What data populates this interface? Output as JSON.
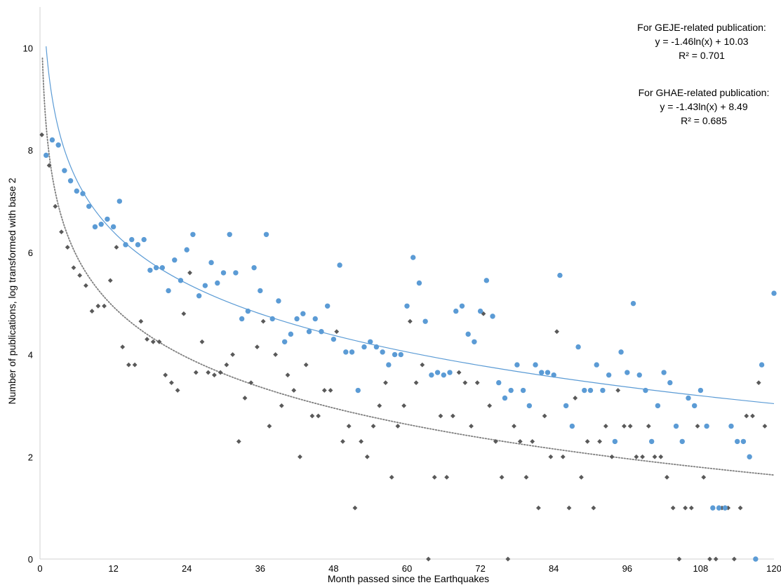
{
  "chart_data": {
    "type": "scatter",
    "xlabel": "Month passed since the Earthquakes",
    "ylabel": "Number of publications, log transformed with base 2",
    "xlim": [
      0,
      120
    ],
    "ylim": [
      0,
      10.8
    ],
    "xticks": [
      0,
      12,
      24,
      36,
      48,
      60,
      72,
      84,
      96,
      108,
      120
    ],
    "yticks": [
      0,
      2,
      4,
      6,
      8,
      10
    ],
    "grid": false,
    "legend": "none",
    "series": [
      {
        "marker": "circle",
        "color": "#5b9bd5",
        "trendline": {
          "type": "log",
          "a": -1.46,
          "b": 10.03,
          "style": "solid",
          "color": "#5b9bd5",
          "x_from": 1,
          "x_to": 120
        },
        "points": [
          [
            1,
            7.9
          ],
          [
            2,
            8.2
          ],
          [
            3,
            8.1
          ],
          [
            4,
            7.6
          ],
          [
            5,
            7.4
          ],
          [
            6,
            7.2
          ],
          [
            7,
            7.15
          ],
          [
            8,
            6.9
          ],
          [
            9,
            6.5
          ],
          [
            10,
            6.55
          ],
          [
            11,
            6.65
          ],
          [
            12,
            6.5
          ],
          [
            13,
            7.0
          ],
          [
            14,
            6.15
          ],
          [
            15,
            6.25
          ],
          [
            16,
            6.15
          ],
          [
            17,
            6.25
          ],
          [
            18,
            5.65
          ],
          [
            19,
            5.7
          ],
          [
            20,
            5.7
          ],
          [
            21,
            5.25
          ],
          [
            22,
            5.85
          ],
          [
            23,
            5.45
          ],
          [
            24,
            6.05
          ],
          [
            25,
            6.35
          ],
          [
            26,
            5.15
          ],
          [
            27,
            5.35
          ],
          [
            28,
            5.8
          ],
          [
            29,
            5.4
          ],
          [
            30,
            5.6
          ],
          [
            31,
            6.35
          ],
          [
            32,
            5.6
          ],
          [
            33,
            4.7
          ],
          [
            34,
            4.85
          ],
          [
            35,
            5.7
          ],
          [
            36,
            5.25
          ],
          [
            37,
            6.35
          ],
          [
            38,
            4.7
          ],
          [
            39,
            5.05
          ],
          [
            40,
            4.25
          ],
          [
            41,
            4.4
          ],
          [
            42,
            4.7
          ],
          [
            43,
            4.8
          ],
          [
            44,
            4.45
          ],
          [
            45,
            4.7
          ],
          [
            46,
            4.45
          ],
          [
            47,
            4.95
          ],
          [
            48,
            4.3
          ],
          [
            49,
            5.75
          ],
          [
            50,
            4.05
          ],
          [
            51,
            4.05
          ],
          [
            52,
            3.3
          ],
          [
            53,
            4.15
          ],
          [
            54,
            4.25
          ],
          [
            55,
            4.15
          ],
          [
            56,
            4.05
          ],
          [
            57,
            3.8
          ],
          [
            58,
            4.0
          ],
          [
            59,
            4.0
          ],
          [
            60,
            4.95
          ],
          [
            61,
            5.9
          ],
          [
            62,
            5.4
          ],
          [
            63,
            4.65
          ],
          [
            64,
            3.6
          ],
          [
            65,
            3.65
          ],
          [
            66,
            3.6
          ],
          [
            67,
            3.65
          ],
          [
            68,
            4.85
          ],
          [
            69,
            4.95
          ],
          [
            70,
            4.4
          ],
          [
            71,
            4.25
          ],
          [
            72,
            4.85
          ],
          [
            73,
            5.45
          ],
          [
            74,
            4.75
          ],
          [
            75,
            3.45
          ],
          [
            76,
            3.15
          ],
          [
            77,
            3.3
          ],
          [
            78,
            3.8
          ],
          [
            79,
            3.3
          ],
          [
            80,
            3.0
          ],
          [
            81,
            3.8
          ],
          [
            82,
            3.65
          ],
          [
            83,
            3.65
          ],
          [
            84,
            3.6
          ],
          [
            85,
            5.55
          ],
          [
            86,
            3.0
          ],
          [
            87,
            2.6
          ],
          [
            88,
            4.15
          ],
          [
            89,
            3.3
          ],
          [
            90,
            3.3
          ],
          [
            91,
            3.8
          ],
          [
            92,
            3.3
          ],
          [
            93,
            3.6
          ],
          [
            94,
            2.3
          ],
          [
            95,
            4.05
          ],
          [
            96,
            3.65
          ],
          [
            97,
            5.0
          ],
          [
            98,
            3.6
          ],
          [
            99,
            3.3
          ],
          [
            100,
            2.3
          ],
          [
            101,
            3.0
          ],
          [
            102,
            3.65
          ],
          [
            103,
            3.45
          ],
          [
            104,
            2.6
          ],
          [
            105,
            2.3
          ],
          [
            106,
            3.15
          ],
          [
            107,
            3.0
          ],
          [
            108,
            3.3
          ],
          [
            109,
            2.6
          ],
          [
            110,
            1.0
          ],
          [
            111,
            1.0
          ],
          [
            112,
            1.0
          ],
          [
            113,
            2.6
          ],
          [
            114,
            2.3
          ],
          [
            115,
            2.3
          ],
          [
            116,
            2.0
          ],
          [
            117,
            0.0
          ],
          [
            118,
            3.8
          ],
          [
            120,
            5.2
          ]
        ]
      },
      {
        "marker": "diamond",
        "color": "#595959",
        "trendline": {
          "type": "log",
          "a": -1.43,
          "b": 8.49,
          "style": "dotted",
          "color": "#7f7f7f",
          "x_from": 0.4,
          "x_to": 120
        },
        "points": [
          [
            0.3,
            8.3
          ],
          [
            1.5,
            7.7
          ],
          [
            2.5,
            6.9
          ],
          [
            3.5,
            6.4
          ],
          [
            4.5,
            6.1
          ],
          [
            5.5,
            5.7
          ],
          [
            6.5,
            5.55
          ],
          [
            7.5,
            5.35
          ],
          [
            8.5,
            4.85
          ],
          [
            9.5,
            4.95
          ],
          [
            10.5,
            4.95
          ],
          [
            11.5,
            5.45
          ],
          [
            12.5,
            6.1
          ],
          [
            13.5,
            4.15
          ],
          [
            14.5,
            3.8
          ],
          [
            15.5,
            3.8
          ],
          [
            16.5,
            4.65
          ],
          [
            17.5,
            4.3
          ],
          [
            18.5,
            4.25
          ],
          [
            19.5,
            4.25
          ],
          [
            20.5,
            3.6
          ],
          [
            21.5,
            3.45
          ],
          [
            22.5,
            3.3
          ],
          [
            23.5,
            4.8
          ],
          [
            24.5,
            5.6
          ],
          [
            25.5,
            3.65
          ],
          [
            26.5,
            4.25
          ],
          [
            27.5,
            3.65
          ],
          [
            28.5,
            3.6
          ],
          [
            29.5,
            3.65
          ],
          [
            30.5,
            3.8
          ],
          [
            31.5,
            4.0
          ],
          [
            32.5,
            2.3
          ],
          [
            33.5,
            3.15
          ],
          [
            34.5,
            3.45
          ],
          [
            35.5,
            4.15
          ],
          [
            36.5,
            4.65
          ],
          [
            37.5,
            2.6
          ],
          [
            38.5,
            4.0
          ],
          [
            39.5,
            3.0
          ],
          [
            40.5,
            3.6
          ],
          [
            41.5,
            3.3
          ],
          [
            42.5,
            2.0
          ],
          [
            43.5,
            3.8
          ],
          [
            44.5,
            2.8
          ],
          [
            45.5,
            2.8
          ],
          [
            46.5,
            3.3
          ],
          [
            47.5,
            3.3
          ],
          [
            48.5,
            4.45
          ],
          [
            49.5,
            2.3
          ],
          [
            50.5,
            2.6
          ],
          [
            51.5,
            1.0
          ],
          [
            52.5,
            2.3
          ],
          [
            53.5,
            2.0
          ],
          [
            54.5,
            2.6
          ],
          [
            55.5,
            3.0
          ],
          [
            56.5,
            3.45
          ],
          [
            57.5,
            1.6
          ],
          [
            58.5,
            2.6
          ],
          [
            59.5,
            3.0
          ],
          [
            60.5,
            4.65
          ],
          [
            61.5,
            3.45
          ],
          [
            62.5,
            3.8
          ],
          [
            63.5,
            0.0
          ],
          [
            64.5,
            1.6
          ],
          [
            65.5,
            2.8
          ],
          [
            66.5,
            1.6
          ],
          [
            67.5,
            2.8
          ],
          [
            68.5,
            3.65
          ],
          [
            69.5,
            3.45
          ],
          [
            70.5,
            2.6
          ],
          [
            71.5,
            3.45
          ],
          [
            72.5,
            4.8
          ],
          [
            73.5,
            3.0
          ],
          [
            74.5,
            2.3
          ],
          [
            75.5,
            1.6
          ],
          [
            76.5,
            0.0
          ],
          [
            77.5,
            2.6
          ],
          [
            78.5,
            2.3
          ],
          [
            79.5,
            1.6
          ],
          [
            80.5,
            2.3
          ],
          [
            81.5,
            1.0
          ],
          [
            82.5,
            2.8
          ],
          [
            83.5,
            2.0
          ],
          [
            84.5,
            4.45
          ],
          [
            85.5,
            2.0
          ],
          [
            86.5,
            1.0
          ],
          [
            87.5,
            3.15
          ],
          [
            88.5,
            1.6
          ],
          [
            89.5,
            2.3
          ],
          [
            90.5,
            1.0
          ],
          [
            91.5,
            2.3
          ],
          [
            92.5,
            2.6
          ],
          [
            93.5,
            2.0
          ],
          [
            94.5,
            3.3
          ],
          [
            95.5,
            2.6
          ],
          [
            96.5,
            2.6
          ],
          [
            97.5,
            2.0
          ],
          [
            98.5,
            2.0
          ],
          [
            99.5,
            2.6
          ],
          [
            100.5,
            2.0
          ],
          [
            101.5,
            2.0
          ],
          [
            102.5,
            1.6
          ],
          [
            103.5,
            1.0
          ],
          [
            104.5,
            0.0
          ],
          [
            105.5,
            1.0
          ],
          [
            106.5,
            1.0
          ],
          [
            107.5,
            2.6
          ],
          [
            108.5,
            1.6
          ],
          [
            109.5,
            0.0
          ],
          [
            110.5,
            0.0
          ],
          [
            111.5,
            1.0
          ],
          [
            112.5,
            1.0
          ],
          [
            113.5,
            0.0
          ],
          [
            114.5,
            1.0
          ],
          [
            115.5,
            2.8
          ],
          [
            116.5,
            2.8
          ],
          [
            117.5,
            3.45
          ],
          [
            118.5,
            2.6
          ]
        ]
      }
    ],
    "annotations": [
      {
        "lines": [
          "For GEJE-related publication:",
          "y = -1.46ln(x) + 10.03",
          "R² = 0.701"
        ]
      },
      {
        "lines": [
          "For GHAE-related publication:",
          "y = -1.43ln(x) + 8.49",
          "R² = 0.685"
        ]
      }
    ]
  }
}
